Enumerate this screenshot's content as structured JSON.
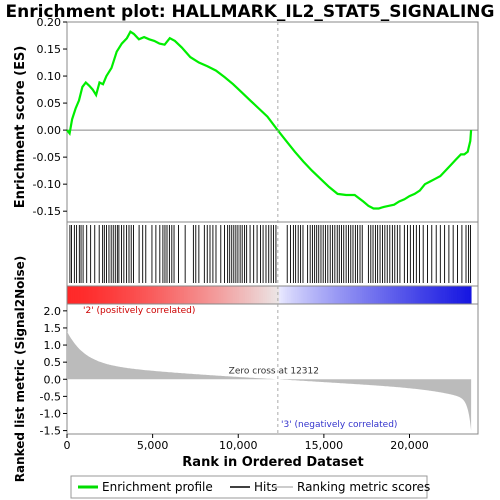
{
  "chart_data": {
    "type": "line",
    "title": "Enrichment plot: HALLMARK_IL2_STAT5_SIGNALING",
    "ylabel_top": "Enrichment score (ES)",
    "ylabel_bottom": "Ranked list metric (Signal2Noise)",
    "xlabel": "Rank in Ordered Dataset",
    "xlim": [
      0,
      24000
    ],
    "x_ticks": [
      0,
      5000,
      10000,
      15000,
      20000
    ],
    "x_tick_labels": [
      "0",
      "5,000",
      "10,000",
      "15,000",
      "20,000"
    ],
    "es_ylim": [
      -0.17,
      0.2
    ],
    "es_ticks": [
      -0.15,
      -0.1,
      -0.05,
      0.0,
      0.05,
      0.1,
      0.15,
      0.2
    ],
    "es_tick_labels": [
      "-0.15",
      "-0.10",
      "-0.05",
      "0.00",
      "0.05",
      "0.10",
      "0.15",
      "0.20"
    ],
    "metric_ylim": [
      -1.6,
      2.2
    ],
    "metric_ticks": [
      -1.5,
      -1.0,
      -0.5,
      0.0,
      0.5,
      1.0,
      1.5,
      2.0
    ],
    "metric_tick_labels": [
      "-1.5",
      "-1.0",
      "-0.5",
      "0.0",
      "0.5",
      "1.0",
      "1.5",
      "2.0"
    ],
    "zero_cross_rank": 12312,
    "zero_cross_label": "Zero cross at 12312",
    "pos_label": "'2' (positively correlated)",
    "neg_label": "'3' (negatively correlated)",
    "n_ranks": 23600,
    "es_curve": {
      "x": [
        0,
        150,
        300,
        500,
        700,
        900,
        1100,
        1300,
        1500,
        1700,
        1900,
        2100,
        2300,
        2600,
        2900,
        3200,
        3500,
        3700,
        3900,
        4200,
        4500,
        4800,
        5100,
        5400,
        5700,
        6000,
        6300,
        6700,
        7200,
        7700,
        8200,
        8700,
        9200,
        9700,
        10200,
        10700,
        11200,
        11700,
        12300,
        12800,
        13300,
        13800,
        14300,
        14800,
        15300,
        15800,
        16300,
        16800,
        17300,
        17600,
        17900,
        18200,
        18500,
        18800,
        19100,
        19400,
        19700,
        20000,
        20300,
        20600,
        20900,
        21200,
        21500,
        21800,
        22100,
        22400,
        22700,
        23000,
        23200,
        23400,
        23550,
        23600
      ],
      "y": [
        0.0,
        -0.006,
        0.02,
        0.04,
        0.055,
        0.08,
        0.088,
        0.082,
        0.075,
        0.065,
        0.088,
        0.085,
        0.1,
        0.115,
        0.145,
        0.16,
        0.17,
        0.182,
        0.178,
        0.168,
        0.172,
        0.168,
        0.165,
        0.16,
        0.158,
        0.17,
        0.165,
        0.153,
        0.135,
        0.125,
        0.118,
        0.11,
        0.098,
        0.085,
        0.07,
        0.055,
        0.04,
        0.025,
        0.0,
        -0.02,
        -0.04,
        -0.058,
        -0.075,
        -0.09,
        -0.105,
        -0.118,
        -0.12,
        -0.12,
        -0.132,
        -0.14,
        -0.145,
        -0.145,
        -0.142,
        -0.14,
        -0.138,
        -0.132,
        -0.128,
        -0.122,
        -0.118,
        -0.112,
        -0.1,
        -0.095,
        -0.09,
        -0.085,
        -0.075,
        -0.065,
        -0.055,
        -0.045,
        -0.045,
        -0.04,
        -0.02,
        0.0
      ]
    },
    "hit_ranks": [
      170,
      260,
      430,
      560,
      720,
      820,
      940,
      1150,
      1380,
      1620,
      1880,
      2080,
      2180,
      2310,
      2450,
      2580,
      2700,
      2820,
      2940,
      3030,
      3180,
      3320,
      3480,
      3620,
      3750,
      3880,
      4210,
      4420,
      4600,
      4960,
      5190,
      5420,
      5600,
      5720,
      5840,
      5980,
      6120,
      6250,
      6510,
      6900,
      7380,
      7520,
      7700,
      8020,
      8190,
      8350,
      8520,
      8700,
      8980,
      9200,
      9380,
      9500,
      9620,
      9740,
      9860,
      9980,
      10110,
      10230,
      10370,
      10490,
      10690,
      10900,
      11100,
      11300,
      11450,
      11620,
      11780,
      11920,
      12060,
      12200,
      12860,
      13050,
      13220,
      13350,
      13500,
      13640,
      13780,
      14050,
      14200,
      14330,
      14460,
      14580,
      14700,
      14830,
      14960,
      15090,
      15230,
      15370,
      15510,
      15640,
      15780,
      15900,
      16030,
      16160,
      16300,
      16440,
      16570,
      16700,
      16840,
      16970,
      17110,
      17240,
      17600,
      17740,
      17870,
      18010,
      18140,
      18280,
      18420,
      18560,
      18700,
      18850,
      19000,
      19140,
      19290,
      19440,
      19700,
      19880,
      20050,
      20230,
      20400,
      20580,
      20800,
      21050,
      21300,
      21560,
      21800,
      22050,
      22300,
      22550,
      22800,
      23060,
      23300,
      23450,
      23560
    ]
  },
  "legend": {
    "items": [
      {
        "label": "Enrichment profile",
        "color": "#00dd00"
      },
      {
        "label": "Hits",
        "color": "#000000"
      },
      {
        "label": "Ranking metric scores",
        "color": "#bbbbbb"
      }
    ]
  },
  "colors": {
    "es_line": "#00ee00",
    "positive": "#ff0000",
    "negative": "#0000ff",
    "metric_fill": "#bbbbbb",
    "pos_text": "#cc0000",
    "neg_text": "#3333cc"
  }
}
